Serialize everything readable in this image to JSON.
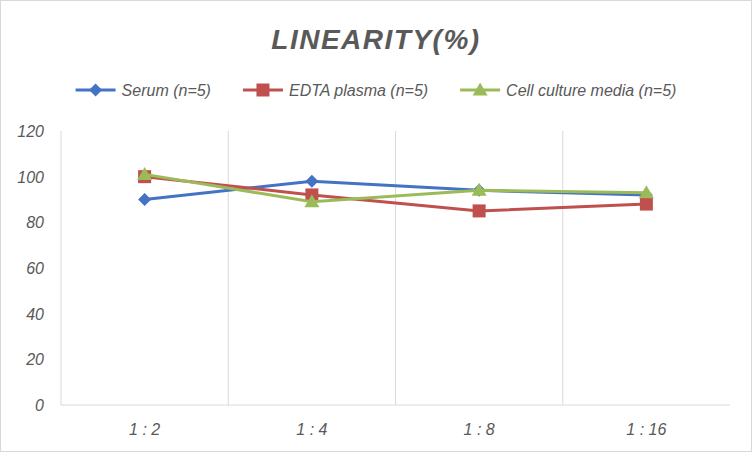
{
  "chart_data": {
    "type": "line",
    "title": "LINEARITY(%)",
    "categories": [
      "1 : 2",
      "1 : 4",
      "1 : 8",
      "1 : 16"
    ],
    "series": [
      {
        "name": "Serum (n=5)",
        "color": "#4472c4",
        "marker": "diamond",
        "values": [
          90,
          98,
          94,
          92
        ]
      },
      {
        "name": "EDTA plasma (n=5)",
        "color": "#c0504d",
        "marker": "square",
        "values": [
          100,
          92,
          85,
          88
        ]
      },
      {
        "name": "Cell culture media (n=5)",
        "color": "#9bbb59",
        "marker": "triangle",
        "values": [
          101,
          89,
          94,
          93
        ]
      }
    ],
    "ylim": [
      0,
      120
    ],
    "yticks": [
      0,
      20,
      40,
      60,
      80,
      100,
      120
    ],
    "grid": true,
    "legend": "top"
  }
}
